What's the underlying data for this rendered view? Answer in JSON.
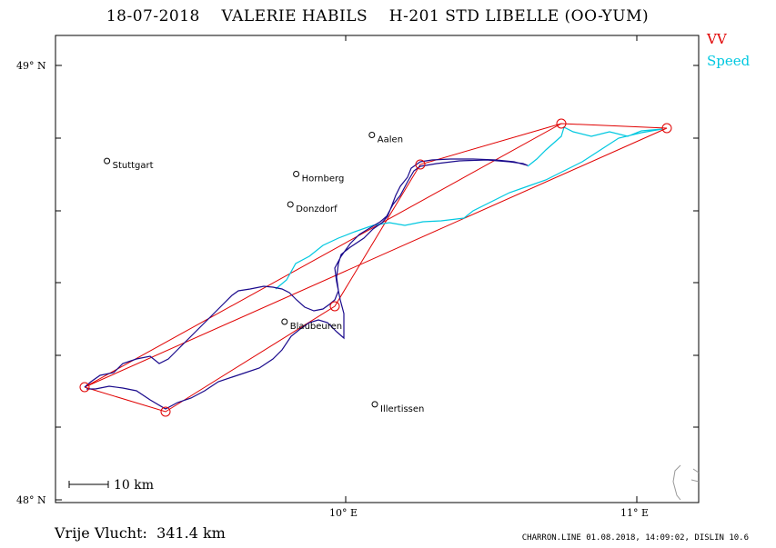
{
  "header": {
    "date": "18-07-2018",
    "pilot": "VALERIE HABILS",
    "glider": "H-201 STD LIBELLE (OO-YUM)"
  },
  "legend": {
    "vv_label": "VV",
    "speed_label": "Speed",
    "vv_color": "#e00000",
    "speed_color": "#00c8e0"
  },
  "axes": {
    "lat_labels": [
      "49° N",
      "48° N"
    ],
    "lon_labels": [
      "10° E",
      "11° E"
    ]
  },
  "scale_bar": {
    "label": "10 km"
  },
  "cities": [
    {
      "name": "Stuttgart",
      "lon": 9.18,
      "lat": 48.78
    },
    {
      "name": "Hornberg",
      "lon": 9.83,
      "lat": 48.75
    },
    {
      "name": "Donzdorf",
      "lon": 9.81,
      "lat": 48.68
    },
    {
      "name": "Aalen",
      "lon": 10.09,
      "lat": 48.84
    },
    {
      "name": "Blaubeuren",
      "lon": 9.79,
      "lat": 48.41
    },
    {
      "name": "Illertissen",
      "lon": 10.1,
      "lat": 48.22
    }
  ],
  "footer": {
    "distance_text": "Vrije Vlucht:  341.4 km",
    "credit": "CHARRON.LINE 01.08.2018, 14:09:02, DISLIN 10.6"
  }
}
